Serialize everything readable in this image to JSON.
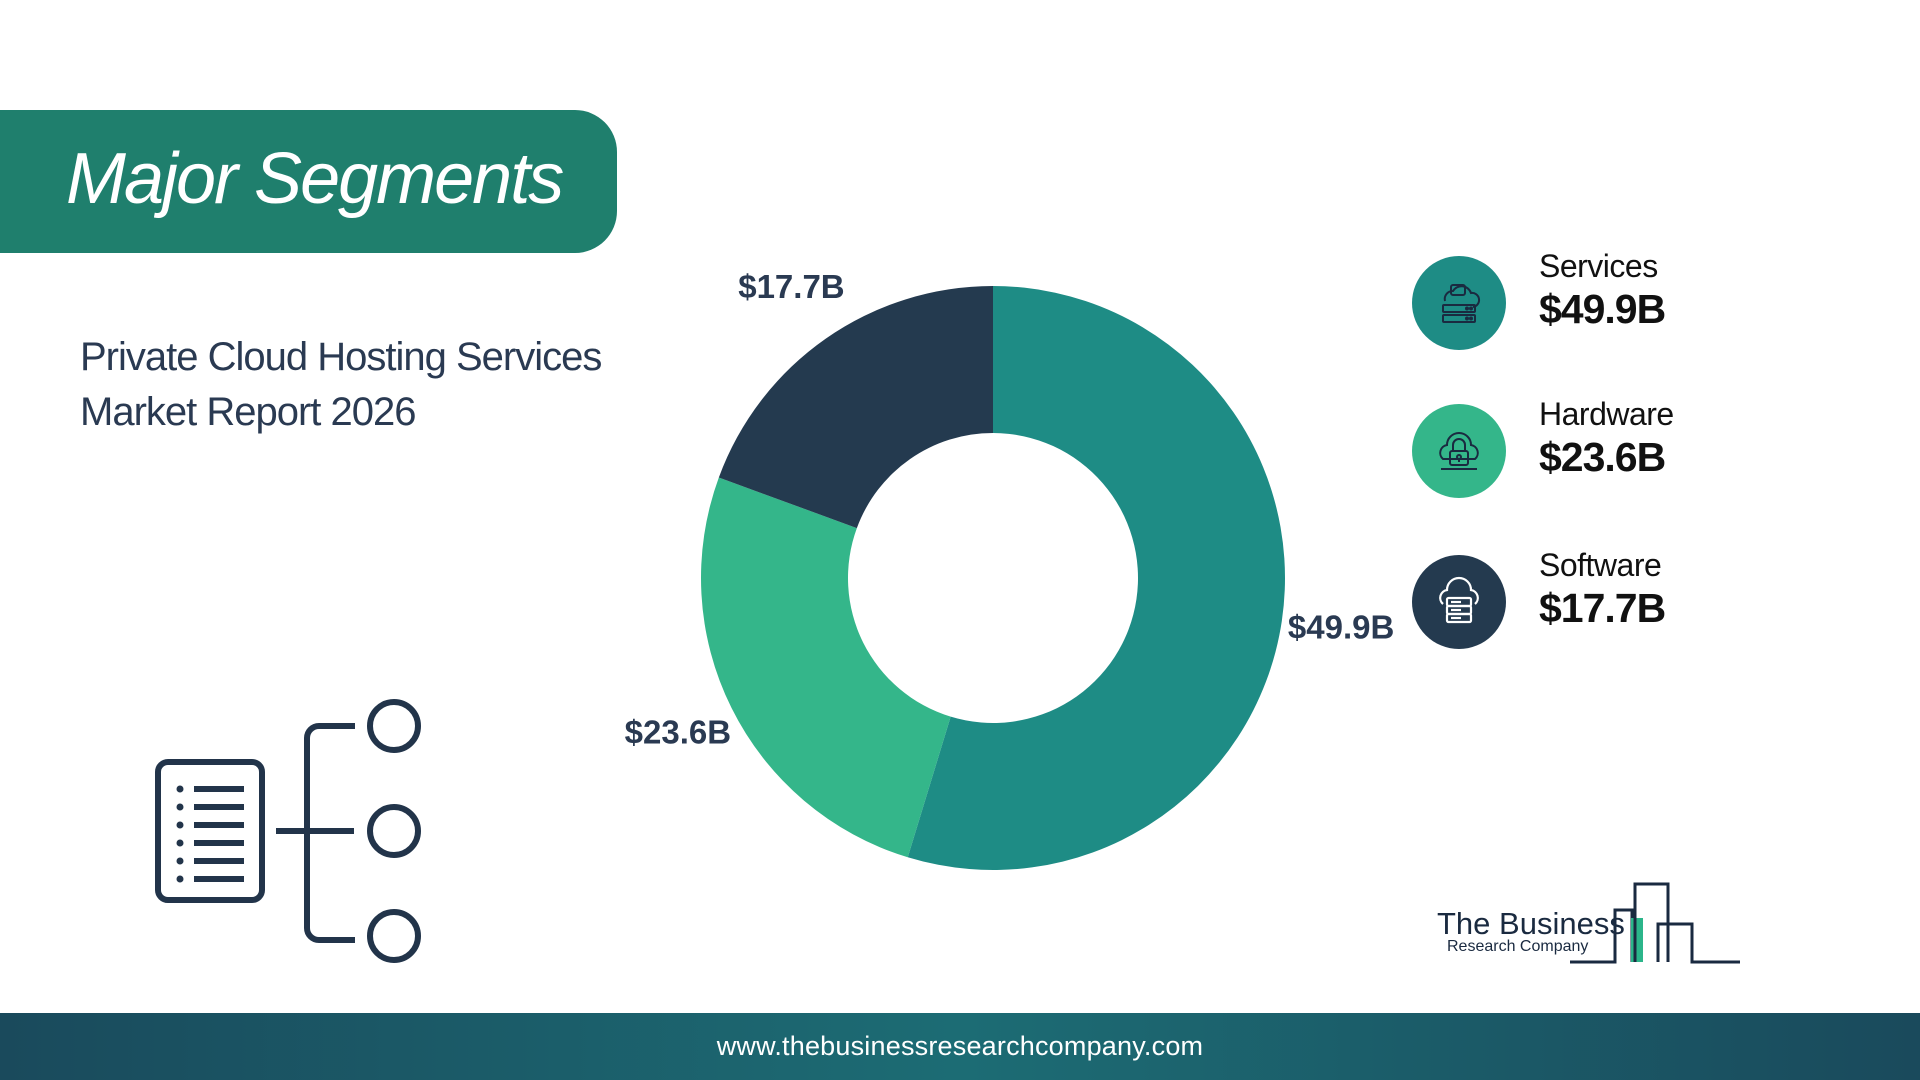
{
  "header": {
    "title": "Major Segments"
  },
  "subtitle": {
    "line1": "Private Cloud Hosting Services",
    "line2": "Market Report 2026"
  },
  "chart_data": {
    "type": "pie",
    "categories": [
      "Services",
      "Hardware",
      "Software"
    ],
    "values": [
      49.9,
      23.6,
      17.7
    ],
    "data_labels": [
      "$49.9B",
      "$23.6B",
      "$17.7B"
    ],
    "colors": [
      "#1e8c85",
      "#34b68a",
      "#243a4f"
    ],
    "donut": true
  },
  "legend": [
    {
      "name": "Services",
      "value": "$49.9B",
      "icon": "cloud-server-lock-icon",
      "color": "#1e8c85"
    },
    {
      "name": "Hardware",
      "value": "$23.6B",
      "icon": "cloud-lock-icon",
      "color": "#34b68a"
    },
    {
      "name": "Software",
      "value": "$17.7B",
      "icon": "cloud-database-icon",
      "color": "#243a4f"
    }
  ],
  "logo": {
    "name": "The Business",
    "sub": "Research Company"
  },
  "footer": {
    "url": "www.thebusinessresearchcompany.com"
  }
}
